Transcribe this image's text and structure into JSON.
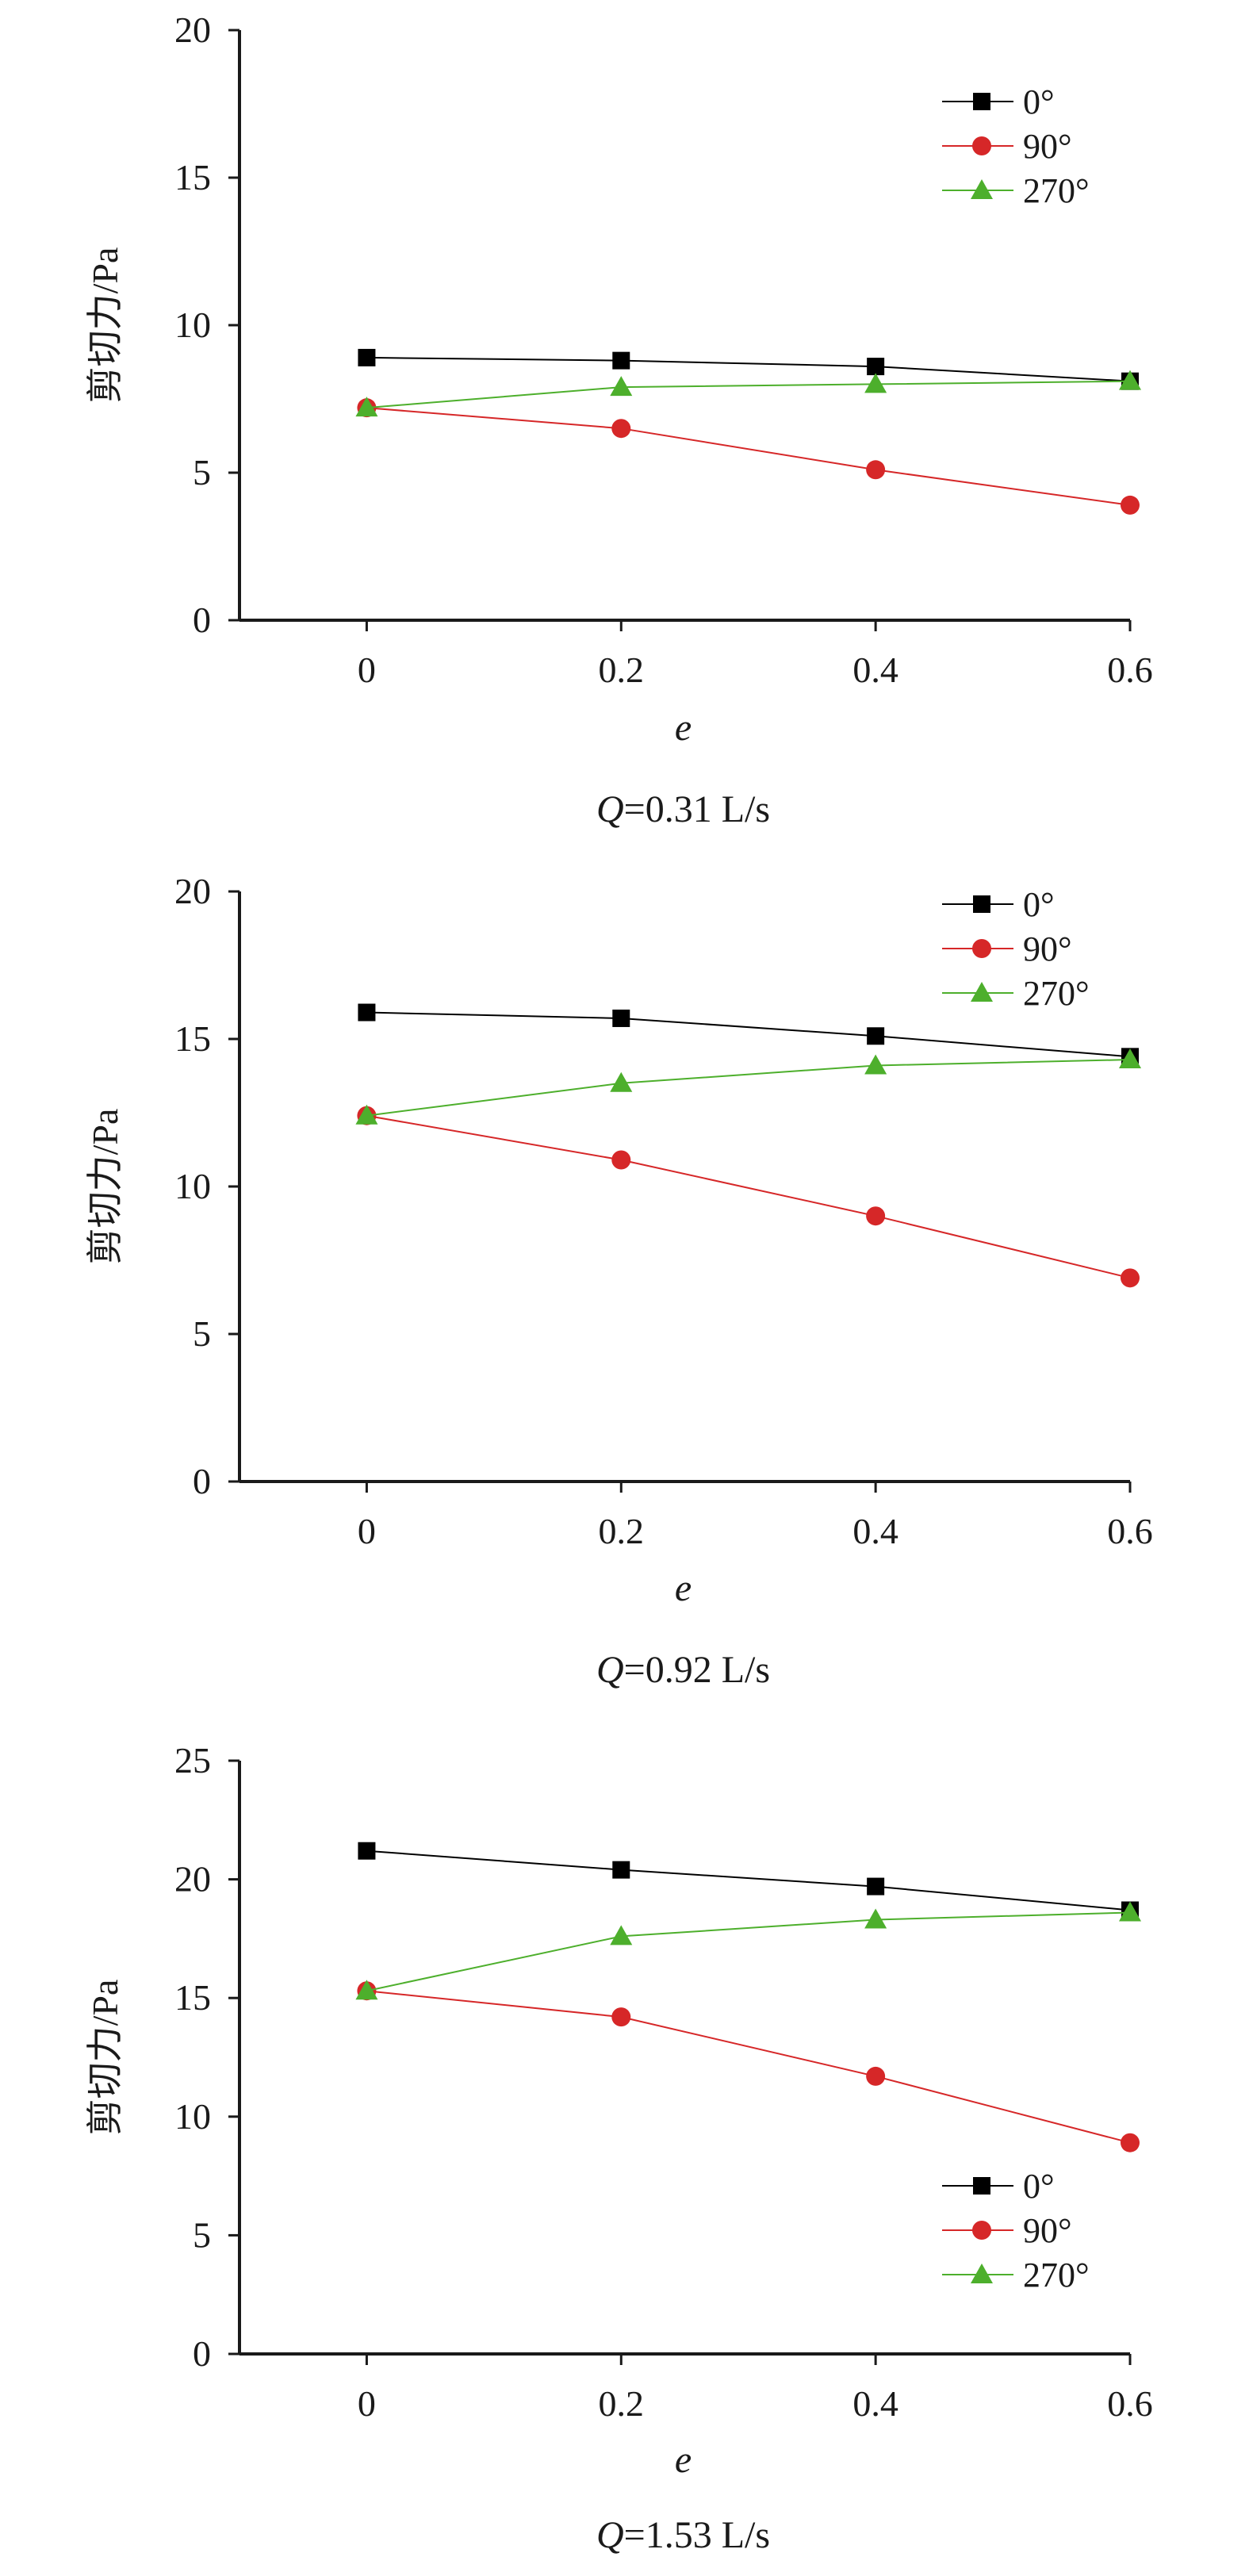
{
  "colors": {
    "series_0": "#000000",
    "series_90": "#d62728",
    "series_270": "#4daf2c",
    "axis": "#1a1a1a"
  },
  "chart_data": [
    {
      "type": "line",
      "caption_var": "Q",
      "caption_value": "=0.31 L/s",
      "xlabel": "e",
      "ylabel": "剪切力/Pa",
      "x": [
        0,
        0.2,
        0.4,
        0.6
      ],
      "x_tick_labels": [
        "0",
        "0.2",
        "0.4",
        "0.6"
      ],
      "xlim": [
        -0.1,
        0.6
      ],
      "ylim": [
        0,
        20
      ],
      "y_ticks": [
        0,
        5,
        10,
        15,
        20
      ],
      "y_tick_labels": [
        "0",
        "5",
        "10",
        "15",
        "20"
      ],
      "grid": false,
      "legend_position": "top-right",
      "series": [
        {
          "name": "0°",
          "marker": "square",
          "values": [
            8.9,
            8.8,
            8.6,
            8.1
          ]
        },
        {
          "name": "90°",
          "marker": "circle",
          "values": [
            7.2,
            6.5,
            5.1,
            3.9
          ]
        },
        {
          "name": "270°",
          "marker": "triangle",
          "values": [
            7.2,
            7.9,
            8.0,
            8.1
          ]
        }
      ]
    },
    {
      "type": "line",
      "caption_var": "Q",
      "caption_value": "=0.92 L/s",
      "xlabel": "e",
      "ylabel": "剪切力/Pa",
      "x": [
        0,
        0.2,
        0.4,
        0.6
      ],
      "x_tick_labels": [
        "0",
        "0.2",
        "0.4",
        "0.6"
      ],
      "xlim": [
        -0.1,
        0.6
      ],
      "ylim": [
        0,
        20
      ],
      "y_ticks": [
        0,
        5,
        10,
        15,
        20
      ],
      "y_tick_labels": [
        "0",
        "5",
        "10",
        "15",
        "20"
      ],
      "grid": false,
      "legend_position": "top-right",
      "series": [
        {
          "name": "0°",
          "marker": "square",
          "values": [
            15.9,
            15.7,
            15.1,
            14.4
          ]
        },
        {
          "name": "90°",
          "marker": "circle",
          "values": [
            12.4,
            10.9,
            9.0,
            6.9
          ]
        },
        {
          "name": "270°",
          "marker": "triangle",
          "values": [
            12.4,
            13.5,
            14.1,
            14.3
          ]
        }
      ]
    },
    {
      "type": "line",
      "caption_var": "Q",
      "caption_value": "=1.53 L/s",
      "xlabel": "e",
      "ylabel": "剪切力/Pa",
      "x": [
        0,
        0.2,
        0.4,
        0.6
      ],
      "x_tick_labels": [
        "0",
        "0.2",
        "0.4",
        "0.6"
      ],
      "xlim": [
        -0.1,
        0.6
      ],
      "ylim": [
        0,
        25
      ],
      "y_ticks": [
        0,
        5,
        10,
        15,
        20,
        25
      ],
      "y_tick_labels": [
        "0",
        "5",
        "10",
        "15",
        "20",
        "25"
      ],
      "grid": false,
      "legend_position": "bottom-right",
      "series": [
        {
          "name": "0°",
          "marker": "square",
          "values": [
            21.2,
            20.4,
            19.7,
            18.7
          ]
        },
        {
          "name": "90°",
          "marker": "circle",
          "values": [
            15.3,
            14.2,
            11.7,
            8.9
          ]
        },
        {
          "name": "270°",
          "marker": "triangle",
          "values": [
            15.3,
            17.6,
            18.3,
            18.6
          ]
        }
      ]
    }
  ]
}
